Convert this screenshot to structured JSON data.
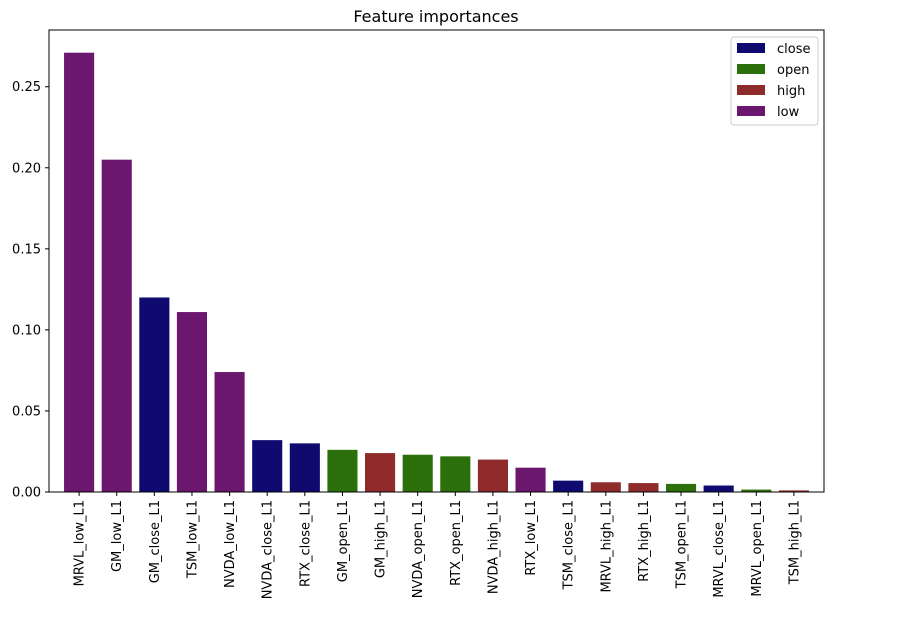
{
  "chart_data": {
    "type": "bar",
    "title": "Feature importances",
    "xlabel": "",
    "ylabel": "",
    "ylim": [
      0,
      0.285
    ],
    "yticks": [
      "0.00",
      "0.05",
      "0.10",
      "0.15",
      "0.20",
      "0.25"
    ],
    "ytick_values": [
      0,
      0.05,
      0.1,
      0.15,
      0.2,
      0.25
    ],
    "grid": false,
    "legend_position": "top-right",
    "groups": [
      {
        "name": "close",
        "color": "#0f0a70"
      },
      {
        "name": "open",
        "color": "#2b700a"
      },
      {
        "name": "high",
        "color": "#8f2b2b"
      },
      {
        "name": "low",
        "color": "#6b176e"
      }
    ],
    "categories": [
      "MRVL_low_L1",
      "GM_low_L1",
      "GM_close_L1",
      "TSM_low_L1",
      "NVDA_low_L1",
      "NVDA_close_L1",
      "RTX_close_L1",
      "GM_open_L1",
      "GM_high_L1",
      "NVDA_open_L1",
      "RTX_open_L1",
      "NVDA_high_L1",
      "RTX_low_L1",
      "TSM_close_L1",
      "MRVL_high_L1",
      "RTX_high_L1",
      "TSM_open_L1",
      "MRVL_close_L1",
      "MRVL_open_L1",
      "TSM_high_L1"
    ],
    "values": [
      0.271,
      0.205,
      0.12,
      0.111,
      0.074,
      0.032,
      0.03,
      0.026,
      0.024,
      0.023,
      0.022,
      0.02,
      0.015,
      0.007,
      0.006,
      0.0055,
      0.005,
      0.004,
      0.0015,
      0.001
    ],
    "bar_group": [
      "low",
      "low",
      "close",
      "low",
      "low",
      "close",
      "close",
      "open",
      "high",
      "open",
      "open",
      "high",
      "low",
      "close",
      "high",
      "high",
      "open",
      "close",
      "open",
      "high"
    ]
  }
}
